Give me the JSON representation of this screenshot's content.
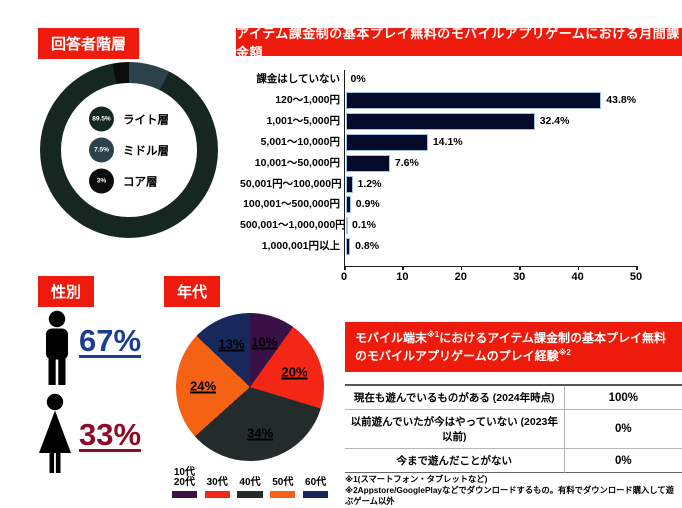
{
  "accent_red": "#ee1b0c",
  "chart_data": [
    {
      "id": "respondent-tier-donut",
      "type": "pie",
      "donut": true,
      "title": "回答者階層",
      "slices": [
        {
          "label": "ライト層",
          "value": 89.5,
          "display": "89.5%",
          "color": "#152720"
        },
        {
          "label": "ミドル層",
          "value": 7.5,
          "display": "7.5%",
          "color": "#2c4149"
        },
        {
          "label": "コア層",
          "value": 3,
          "display": "3%",
          "color": "#0b0d0c"
        }
      ],
      "render_order": [
        1,
        0,
        2
      ],
      "legend_position": "center"
    },
    {
      "id": "monthly-spend-bar",
      "type": "bar",
      "title": "アイテム課金制の基本プレイ無料のモバイルアプリゲームにおける月間課金額",
      "categories": [
        "課金はしていない",
        "120〜1,000円",
        "1,001〜5,000円",
        "5,001〜10,000円",
        "10,001〜50,000円",
        "50,001円〜100,000円",
        "100,001〜500,000円",
        "500,001〜1,000,000円",
        "1,000,001円以上"
      ],
      "values": [
        0,
        43.8,
        32.4,
        14.1,
        7.6,
        1.2,
        0.9,
        0.1,
        0.8
      ],
      "value_labels": [
        "0%",
        "43.8%",
        "32.4%",
        "14.1%",
        "7.6%",
        "1.2%",
        "0.9%",
        "0.1%",
        "0.8%"
      ],
      "xlim": [
        0,
        50
      ],
      "xticks": [
        0,
        10,
        20,
        30,
        40,
        50
      ],
      "bar_color": "#050a2b",
      "bar_border": "#9dc3e6",
      "grid": false
    },
    {
      "id": "age-pie",
      "type": "pie",
      "title": "年代",
      "slices": [
        {
          "label": "10代\n20代",
          "value": 10,
          "display": "10%",
          "color": "#3a1147"
        },
        {
          "label": "30代",
          "value": 20,
          "display": "20%",
          "color": "#f42716"
        },
        {
          "label": "40代",
          "value": 34,
          "display": "34%",
          "color": "#232b2b"
        },
        {
          "label": "50代",
          "value": 24,
          "display": "24%",
          "color": "#f66214"
        },
        {
          "label": "60代",
          "value": 13,
          "display": "13%",
          "color": "#17295c"
        }
      ],
      "legend_position": "bottom"
    },
    {
      "id": "play-experience-table",
      "type": "table",
      "title_parts": {
        "p1": "モバイル端末",
        "sup1": "※1",
        "p2": "におけるアイテム課金制の基本プレイ無料のモバイルアプリゲームのプレイ経験",
        "sup2": "※2"
      },
      "rows": [
        {
          "label": "現在も遊んでいるものがある (2024年時点)",
          "value": "100%"
        },
        {
          "label": "以前遊んでいたが今はやっていない (2023年以前)",
          "value": "0%"
        },
        {
          "label": "今まで遊んだことがない",
          "value": "0%"
        }
      ],
      "footnotes": [
        "※1(スマートフォン・タブレットなど)",
        "※2Appstore/GooglePlayなどでダウンロードするもの。有料でダウンロード購入して遊ぶゲーム以外"
      ]
    }
  ],
  "gender": {
    "title": "性別",
    "male_value": "67%",
    "female_value": "33%",
    "male_color": "#1b3e8f",
    "female_color": "#8e0b27"
  }
}
